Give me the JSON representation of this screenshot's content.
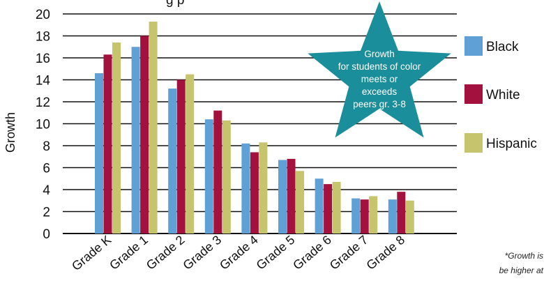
{
  "chart_data": {
    "type": "bar",
    "title": "",
    "title_fragment": "g     p",
    "xlabel": "",
    "ylabel": "Growth",
    "ylim": [
      0,
      20
    ],
    "yticks": [
      0,
      2,
      4,
      6,
      8,
      10,
      12,
      14,
      16,
      18,
      20
    ],
    "grid": true,
    "legend_position": "right",
    "categories": [
      "Grade K",
      "Grade 1",
      "Grade 2",
      "Grade 3",
      "Grade 4",
      "Grade 5",
      "Grade 6",
      "Grade 7",
      "Grade 8"
    ],
    "series": [
      {
        "name": "Black",
        "color": "#5fa0d6",
        "values": [
          14.6,
          17.0,
          13.2,
          10.4,
          8.2,
          6.7,
          5.0,
          3.2,
          3.1
        ]
      },
      {
        "name": "White",
        "color": "#a3123e",
        "values": [
          16.3,
          18.0,
          14.0,
          11.2,
          7.4,
          6.8,
          4.5,
          3.1,
          3.8
        ]
      },
      {
        "name": "Hispanic",
        "color": "#c7c46e",
        "values": [
          17.4,
          19.3,
          14.5,
          10.3,
          8.3,
          5.7,
          4.7,
          3.4,
          3.0
        ]
      }
    ],
    "annotation": {
      "lines": [
        "Growth",
        "for students of color",
        "meets or",
        "exceeds",
        "peers gr. 3-8"
      ],
      "color": "#1b8e9b"
    },
    "footnote": [
      "*Growth is",
      "be higher at"
    ]
  }
}
